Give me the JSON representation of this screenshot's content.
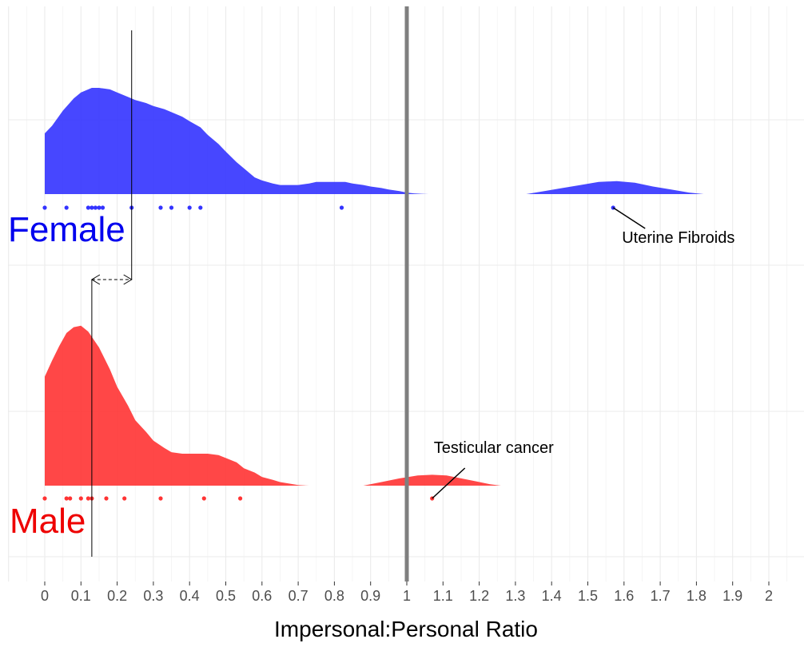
{
  "chart_data": {
    "type": "area",
    "title": "",
    "xlabel": "Impersonal:Personal Ratio",
    "ylabel": "",
    "xlim": [
      -0.1,
      2.1
    ],
    "xticks": [
      "0",
      "0.1",
      "0.2",
      "0.3",
      "0.4",
      "0.5",
      "0.6",
      "0.7",
      "0.8",
      "0.9",
      "1",
      "1.1",
      "1.2",
      "1.3",
      "1.4",
      "1.5",
      "1.6",
      "1.7",
      "1.8",
      "1.9",
      "2"
    ],
    "grid": true,
    "legend": "none",
    "reference_line": {
      "x": 1.0,
      "color": "#7f7f7f"
    },
    "series": [
      {
        "name": "Female",
        "color": "#3333ff",
        "density": {
          "x": [
            0,
            0.02,
            0.05,
            0.08,
            0.1,
            0.13,
            0.15,
            0.18,
            0.2,
            0.23,
            0.25,
            0.28,
            0.3,
            0.33,
            0.35,
            0.38,
            0.4,
            0.43,
            0.45,
            0.48,
            0.5,
            0.53,
            0.55,
            0.58,
            0.6,
            0.63,
            0.65,
            0.68,
            0.7,
            0.73,
            0.75,
            0.78,
            0.8,
            0.83,
            0.85,
            0.88,
            0.9,
            0.93,
            0.95,
            0.98,
            1.0,
            1.02,
            1.04,
            1.06
          ],
          "y": [
            0.4,
            0.45,
            0.55,
            0.63,
            0.67,
            0.7,
            0.7,
            0.69,
            0.67,
            0.64,
            0.62,
            0.6,
            0.58,
            0.56,
            0.54,
            0.51,
            0.48,
            0.44,
            0.39,
            0.33,
            0.28,
            0.21,
            0.17,
            0.11,
            0.09,
            0.07,
            0.06,
            0.06,
            0.06,
            0.07,
            0.08,
            0.08,
            0.08,
            0.08,
            0.07,
            0.06,
            0.05,
            0.04,
            0.03,
            0.02,
            0.01,
            0.005,
            0.002,
            0.0
          ]
        },
        "density_tail": {
          "x": [
            1.33,
            1.38,
            1.43,
            1.48,
            1.53,
            1.58,
            1.63,
            1.68,
            1.73,
            1.78,
            1.82
          ],
          "y": [
            0.0,
            0.02,
            0.04,
            0.06,
            0.08,
            0.085,
            0.075,
            0.05,
            0.03,
            0.01,
            0.0
          ]
        },
        "points": [
          0,
          0.06,
          0.12,
          0.13,
          0.14,
          0.15,
          0.16,
          0.24,
          0.32,
          0.35,
          0.4,
          0.43,
          0.82,
          1.57
        ],
        "label": "Female",
        "annotation": {
          "text": "Uterine Fibroids",
          "x": 1.57
        }
      },
      {
        "name": "Male",
        "color": "#ff3333",
        "density": {
          "x": [
            0,
            0.02,
            0.04,
            0.06,
            0.08,
            0.1,
            0.12,
            0.15,
            0.18,
            0.2,
            0.23,
            0.25,
            0.28,
            0.3,
            0.33,
            0.35,
            0.38,
            0.4,
            0.43,
            0.45,
            0.48,
            0.5,
            0.53,
            0.55,
            0.58,
            0.6,
            0.63,
            0.65,
            0.68,
            0.7,
            0.73
          ],
          "y": [
            0.75,
            0.86,
            0.96,
            1.05,
            1.09,
            1.1,
            1.06,
            0.95,
            0.8,
            0.68,
            0.55,
            0.45,
            0.37,
            0.31,
            0.26,
            0.23,
            0.22,
            0.22,
            0.22,
            0.22,
            0.21,
            0.19,
            0.16,
            0.12,
            0.09,
            0.06,
            0.04,
            0.025,
            0.012,
            0.004,
            0.0
          ]
        },
        "density_tail": {
          "x": [
            0.88,
            0.93,
            0.98,
            1.03,
            1.07,
            1.11,
            1.15,
            1.19,
            1.23,
            1.26
          ],
          "y": [
            0.0,
            0.025,
            0.05,
            0.07,
            0.075,
            0.07,
            0.05,
            0.03,
            0.01,
            0.0
          ]
        },
        "points": [
          0,
          0.06,
          0.07,
          0.1,
          0.12,
          0.13,
          0.17,
          0.22,
          0.32,
          0.44,
          0.54,
          1.07
        ],
        "label": "Male",
        "annotation": {
          "text": "Testicular cancer",
          "x": 1.07
        }
      }
    ],
    "shift_arrow": {
      "from_x": 0.24,
      "to_x": 0.13
    }
  }
}
